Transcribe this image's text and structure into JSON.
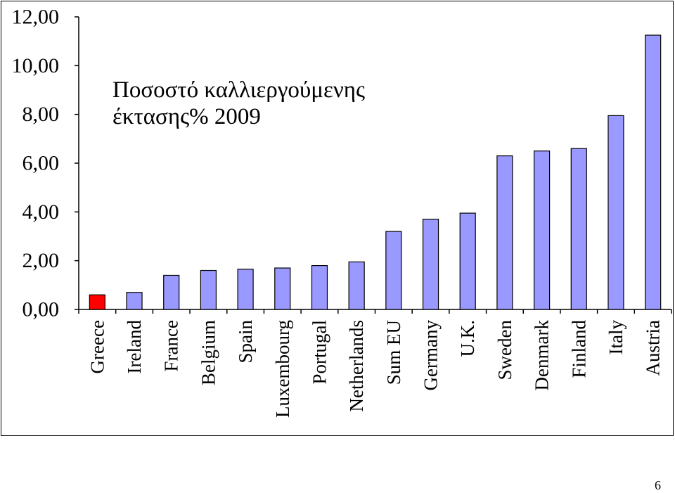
{
  "page_number": "6",
  "colors": {
    "highlight": "#ff0000",
    "bars": "#9999ff",
    "bar_outline": "#000000",
    "axis": "#000000"
  },
  "chart_data": {
    "type": "bar",
    "title_lines": [
      "Ποσοστό καλλιεργούμενης",
      "έκτασης% 2009"
    ],
    "categories": [
      "Greece",
      "Ireland",
      "France",
      "Belgium",
      "Spain",
      "Luxembourg",
      "Portugal",
      "Netherlands",
      "Sum EU",
      "Germany",
      "U.K.",
      "Sweden",
      "Denmark",
      "Finland",
      "Italy",
      "Austria"
    ],
    "values": [
      0.6,
      0.7,
      1.4,
      1.6,
      1.65,
      1.7,
      1.8,
      1.95,
      3.2,
      3.7,
      3.95,
      6.3,
      6.5,
      6.6,
      7.95,
      11.25
    ],
    "highlight_category": "Greece",
    "ylim": [
      0,
      12
    ],
    "yticks": [
      "0,00",
      "2,00",
      "4,00",
      "6,00",
      "8,00",
      "10,00",
      "12,00"
    ],
    "xlabel": "",
    "ylabel": "",
    "grid": false,
    "legend": "none"
  }
}
